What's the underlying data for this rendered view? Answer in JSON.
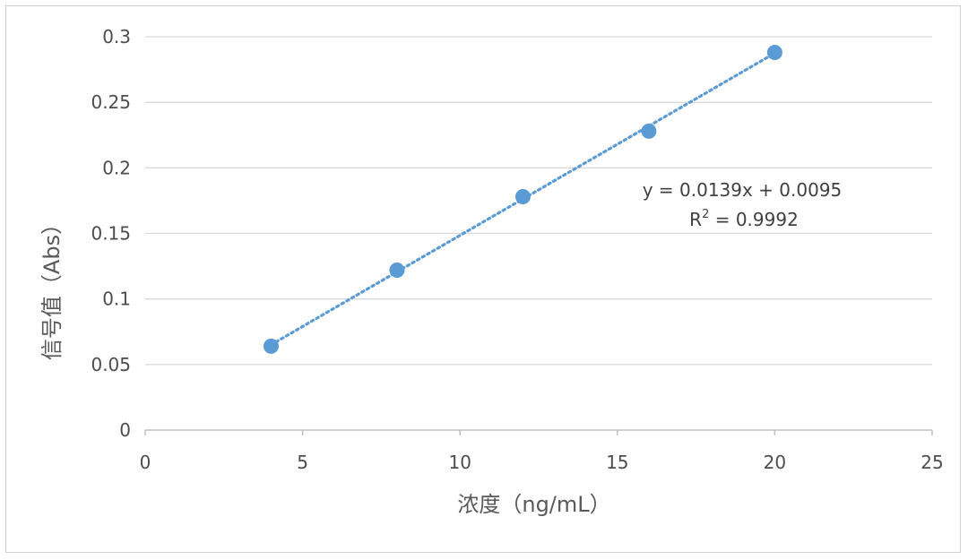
{
  "chart_data": {
    "type": "scatter",
    "xlabel": "浓度（ng/mL）",
    "ylabel": "信号值（Abs）",
    "xlim": [
      0,
      25
    ],
    "ylim": [
      0,
      0.3
    ],
    "x_ticks": [
      0,
      5,
      10,
      15,
      20,
      25
    ],
    "y_ticks": [
      0,
      0.05,
      0.1,
      0.15,
      0.2,
      0.25,
      0.3
    ],
    "x_tick_labels": [
      "0",
      "5",
      "10",
      "15",
      "20",
      "25"
    ],
    "y_tick_labels": [
      "0",
      "0.05",
      "0.1",
      "0.15",
      "0.2",
      "0.25",
      "0.3"
    ],
    "grid": "horizontal",
    "series": [
      {
        "x": [
          4,
          8,
          12,
          16,
          20
        ],
        "y": [
          0.064,
          0.122,
          0.178,
          0.228,
          0.288
        ],
        "color": "#5B9BD5"
      }
    ],
    "trendline": {
      "type": "linear",
      "slope": 0.0139,
      "intercept": 0.0095,
      "x_range": [
        4,
        20
      ],
      "style": "dotted",
      "color": "#5B9BD5"
    },
    "annotations": {
      "equation": "y = 0.0139x + 0.0095",
      "r2_prefix": "R",
      "r2_sup": "2",
      "r2_value": " = 0.9992"
    }
  }
}
